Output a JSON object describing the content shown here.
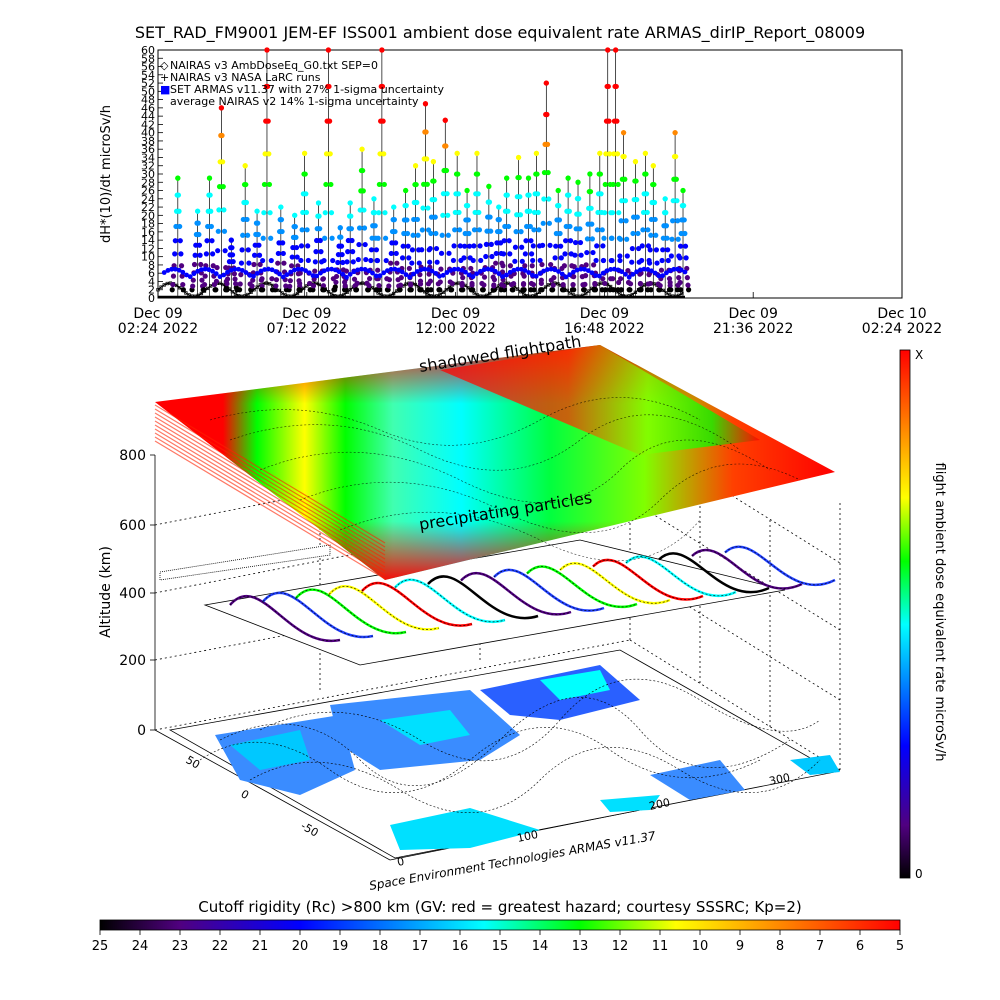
{
  "page_title": "SET_RAD_FM9001   JEM-EF ISS001 ambient dose equivalent rate ARMAS_dirIP_Report_08009",
  "chart_data": [
    {
      "type": "line",
      "ylabel": "dH*(10)/dt microSv/h",
      "ylim": [
        0,
        60
      ],
      "y_ticks": [
        0,
        2,
        4,
        6,
        8,
        10,
        12,
        14,
        16,
        18,
        20,
        22,
        24,
        26,
        28,
        30,
        32,
        34,
        36,
        38,
        40,
        42,
        44,
        46,
        48,
        50,
        52,
        54,
        56,
        58,
        60
      ],
      "x_ticks": [
        {
          "line1": "Dec 09",
          "line2": "02:24 2022"
        },
        {
          "line1": "Dec 09",
          "line2": "07:12 2022"
        },
        {
          "line1": "Dec 09",
          "line2": "12:00 2022"
        },
        {
          "line1": "Dec 09",
          "line2": "16:48 2022"
        },
        {
          "line1": "Dec 09",
          "line2": "21:36 2022"
        },
        {
          "line1": "Dec 10",
          "line2": "02:24 2022"
        }
      ],
      "legend": [
        {
          "marker": "◇",
          "label": "NAIRAS v3 AmbDoseEq_G0.txt SEP=0"
        },
        {
          "marker": "+",
          "label": "NAIRAS v3 NASA LaRC runs"
        },
        {
          "marker": "■",
          "label": "SET ARMAS v11.37 with 27% 1-sigma uncertainty"
        },
        {
          "marker": "",
          "label": "average NAIRAS v2 14% 1-sigma uncertainty"
        }
      ],
      "legend_position": "top-left",
      "time_range_hours": [
        0,
        24
      ],
      "peaks": [
        {
          "t": 1.0,
          "y": 29
        },
        {
          "t": 2.0,
          "y": 21
        },
        {
          "t": 2.6,
          "y": 29
        },
        {
          "t": 3.2,
          "y": 46
        },
        {
          "t": 3.7,
          "y": 14
        },
        {
          "t": 4.4,
          "y": 32
        },
        {
          "t": 5.0,
          "y": 21
        },
        {
          "t": 5.5,
          "y": 60
        },
        {
          "t": 6.2,
          "y": 22
        },
        {
          "t": 6.9,
          "y": 20
        },
        {
          "t": 7.4,
          "y": 35
        },
        {
          "t": 8.1,
          "y": 23
        },
        {
          "t": 8.6,
          "y": 60
        },
        {
          "t": 9.2,
          "y": 17
        },
        {
          "t": 9.7,
          "y": 23
        },
        {
          "t": 10.3,
          "y": 36
        },
        {
          "t": 10.9,
          "y": 24
        },
        {
          "t": 11.3,
          "y": 60
        },
        {
          "t": 11.9,
          "y": 22
        },
        {
          "t": 12.5,
          "y": 26
        },
        {
          "t": 13.0,
          "y": 32
        },
        {
          "t": 13.5,
          "y": 47
        },
        {
          "t": 13.9,
          "y": 33
        },
        {
          "t": 14.5,
          "y": 43
        },
        {
          "t": 15.1,
          "y": 35
        },
        {
          "t": 15.6,
          "y": 26
        },
        {
          "t": 16.1,
          "y": 35
        },
        {
          "t": 16.7,
          "y": 27
        },
        {
          "t": 17.2,
          "y": 22
        },
        {
          "t": 17.6,
          "y": 29
        },
        {
          "t": 18.2,
          "y": 34
        },
        {
          "t": 18.7,
          "y": 29
        },
        {
          "t": 19.1,
          "y": 35
        },
        {
          "t": 19.6,
          "y": 52
        },
        {
          "t": 20.2,
          "y": 26
        },
        {
          "t": 20.7,
          "y": 29
        },
        {
          "t": 21.2,
          "y": 28
        },
        {
          "t": 21.8,
          "y": 30
        },
        {
          "t": 22.3,
          "y": 35
        },
        {
          "t": 22.7,
          "y": 60
        },
        {
          "t": 23.1,
          "y": 60
        },
        {
          "t": 23.5,
          "y": 40
        },
        {
          "t": 24.1,
          "y": 33
        },
        {
          "t": 24.6,
          "y": 35
        },
        {
          "t": 25.0,
          "y": 32
        },
        {
          "t": 25.6,
          "y": 24
        },
        {
          "t": 26.1,
          "y": 40
        },
        {
          "t": 26.5,
          "y": 26
        }
      ]
    },
    {
      "type": "3d-surface",
      "zlabel": "Altitude (km)",
      "z_ticks": [
        0,
        200,
        400,
        600,
        800
      ],
      "x_ticks": [
        0,
        100,
        200,
        300
      ],
      "y_ticks": [
        -50,
        0,
        50
      ],
      "annotations": [
        "shadowed flightpath",
        "precipitating particles",
        "Space Environment Technologies ARMAS v11.37"
      ],
      "right_colorbar": {
        "label": "flight ambient dose equivalent rate microSv/h",
        "top_label": "X",
        "bottom_label": "0"
      }
    }
  ],
  "bottom_colorbar": {
    "title": "Cutoff rigidity (Rc) >800 km (GV: red = greatest hazard; courtesy SSSRC; Kp=2)",
    "ticks": [
      25,
      24,
      23,
      22,
      21,
      20,
      19,
      18,
      17,
      16,
      15,
      14,
      13,
      12,
      11,
      10,
      9,
      8,
      7,
      6,
      5
    ]
  },
  "colors": {
    "red": "#ff0000",
    "orange": "#ff8800",
    "yellow": "#ffff00",
    "green": "#00ff00",
    "cyan": "#00ffff",
    "blue": "#0000ff",
    "purple": "#6000a0",
    "black": "#000000"
  }
}
